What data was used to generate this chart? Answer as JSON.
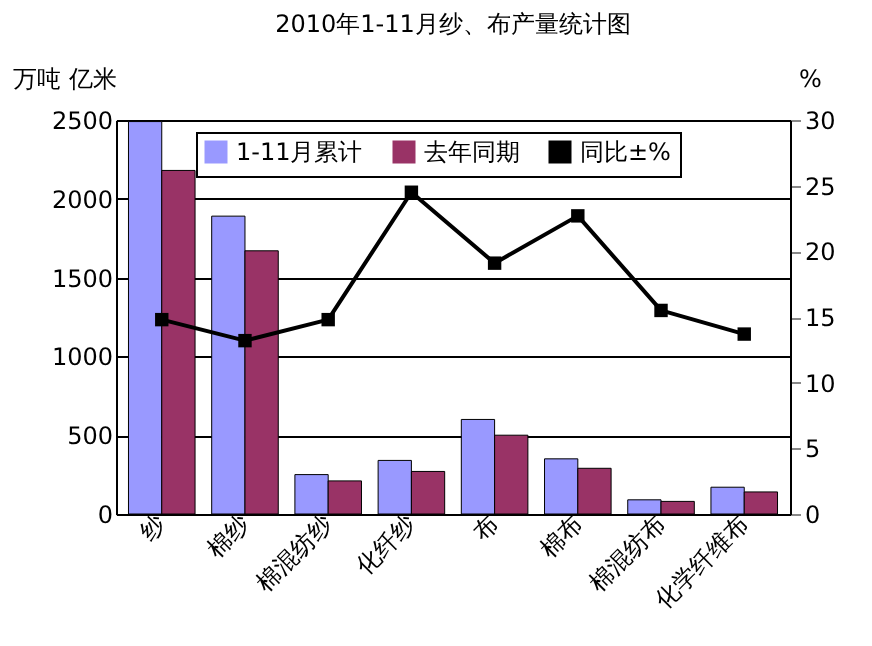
{
  "chart_data": {
    "type": "bar",
    "title": "2010年1-11月纱、布产量统计图",
    "ylabel": "万吨 亿米",
    "y2label": "%",
    "categories": [
      "纱",
      "棉纱",
      "棉混纺纱",
      "化纤纱",
      "布",
      "棉布",
      "棉混纺布",
      "化学纤维布"
    ],
    "series": [
      {
        "name": "1-11月累计",
        "color": "#9999ff",
        "values": [
          2490,
          1890,
          250,
          340,
          600,
          350,
          90,
          170
        ]
      },
      {
        "name": "去年同期",
        "color": "#993366",
        "values": [
          2180,
          1670,
          210,
          270,
          500,
          290,
          80,
          140
        ]
      },
      {
        "name": "同比±%",
        "type": "line",
        "axis": "y2",
        "color": "#000000",
        "marker": "square",
        "values": [
          14.8,
          13.2,
          14.8,
          24.5,
          19.1,
          22.7,
          15.5,
          13.7
        ]
      }
    ],
    "ylim": [
      0,
      2500
    ],
    "yticks": [
      0,
      500,
      1000,
      1500,
      2000,
      2500
    ],
    "y2lim": [
      0,
      30
    ],
    "y2ticks": [
      0,
      5,
      10,
      15,
      20,
      25,
      30
    ],
    "grid": "y",
    "legend": "top right"
  }
}
